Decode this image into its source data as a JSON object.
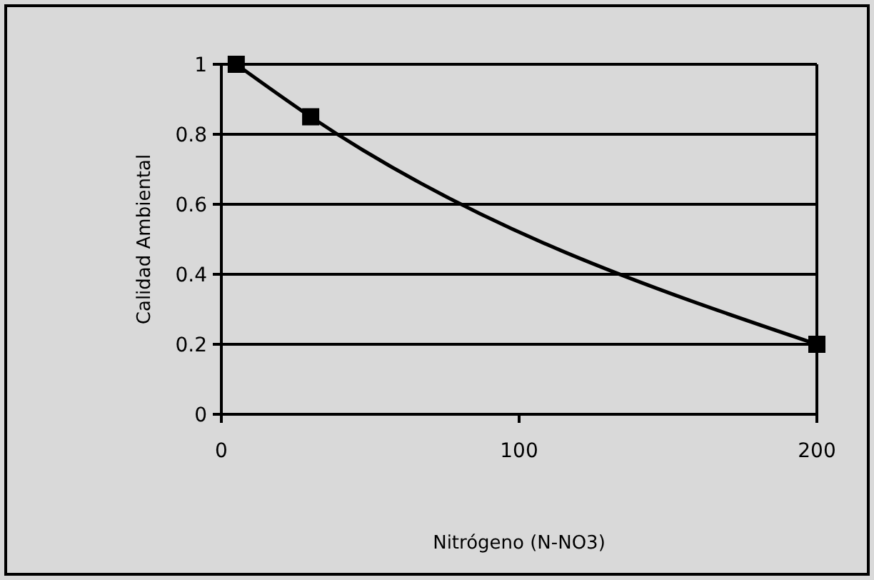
{
  "chart_data": {
    "type": "line",
    "xlabel": "Nitrógeno (N-NO3)",
    "ylabel": "Calidad Ambiental",
    "x": [
      5,
      30,
      200
    ],
    "series": [
      {
        "color": "#000000",
        "values": [
          1,
          0.85,
          0.2
        ]
      }
    ],
    "xlim": [
      0,
      200
    ],
    "xticks": [
      0,
      100,
      200
    ],
    "ylim": [
      0,
      1
    ],
    "yticks": [
      0,
      0.2,
      0.4,
      0.6,
      0.8,
      1
    ],
    "grid": "y",
    "marker": "square",
    "line_style": "solid"
  }
}
